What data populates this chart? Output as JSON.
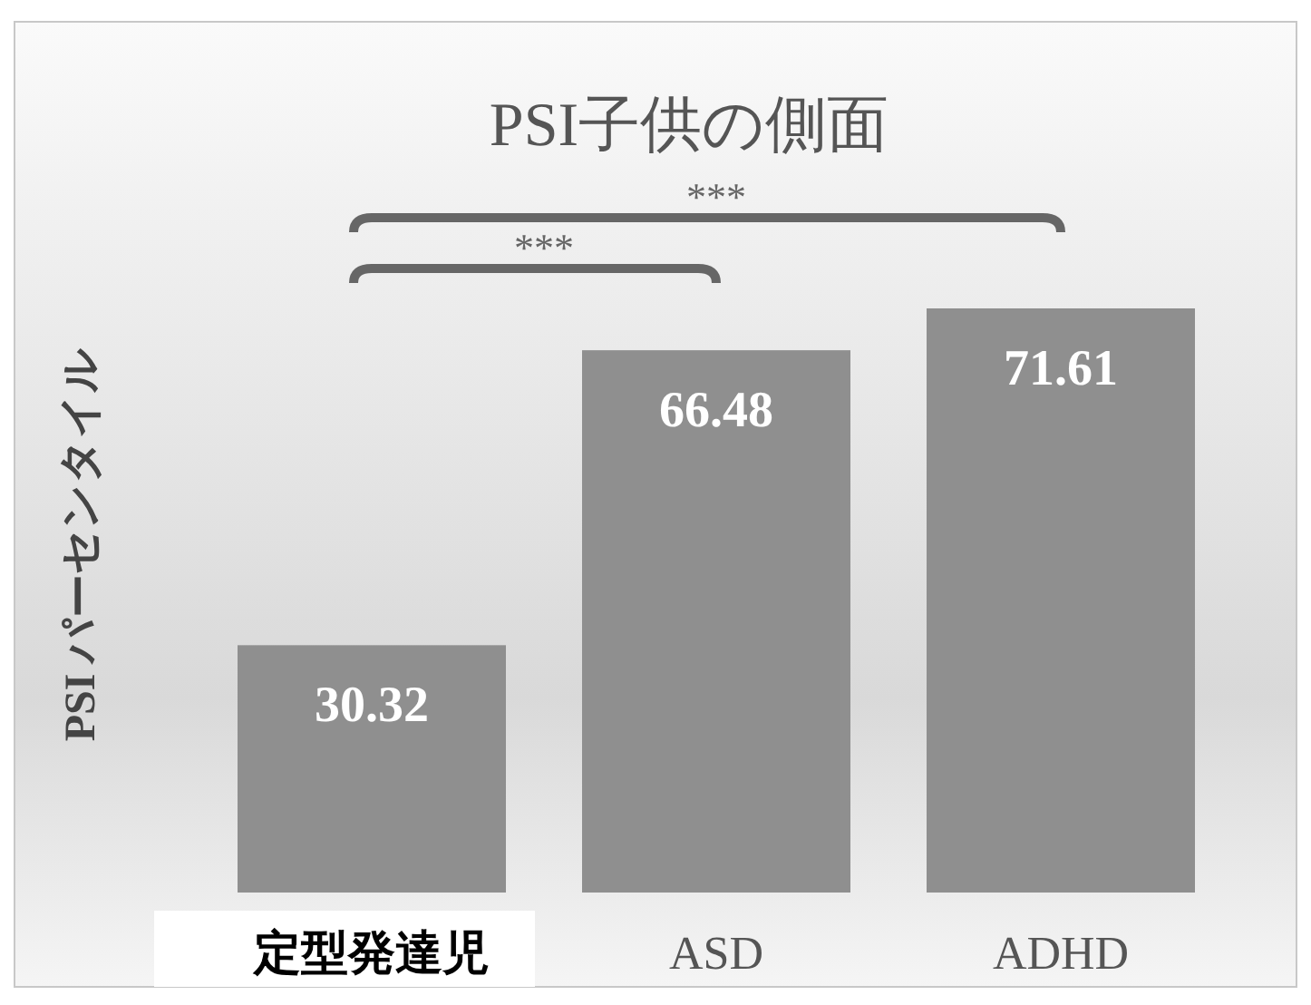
{
  "chart_data": {
    "type": "bar",
    "title": "PSI子供の側面",
    "ylabel": "PSI パーセンタイル",
    "categories": [
      "定型発達児",
      "ASD",
      "ADHD"
    ],
    "values": [
      30.32,
      66.48,
      71.61
    ],
    "color": "#8f8f8f",
    "data_labels": true,
    "annotations": [
      "***",
      "***"
    ]
  }
}
